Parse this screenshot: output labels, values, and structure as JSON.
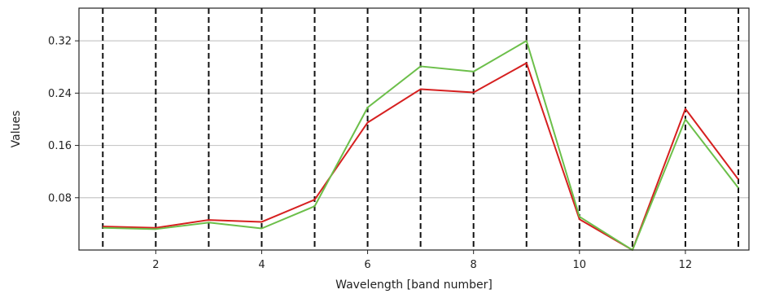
{
  "chart_data": {
    "type": "line",
    "xlabel": "Wavelength [band number]",
    "ylabel": "Values",
    "xlim": [
      0.55,
      13.2
    ],
    "ylim": [
      0.0,
      0.37
    ],
    "xticks": [
      2,
      4,
      6,
      8,
      10,
      12
    ],
    "xtick_labels": [
      "2",
      "4",
      "6",
      "8",
      "10",
      "12"
    ],
    "yticks": [
      0.08,
      0.16,
      0.24,
      0.32
    ],
    "ytick_labels": [
      "0.08",
      "0.16",
      "0.24",
      "0.32"
    ],
    "grid": "horizontal",
    "vertical_markers": [
      1,
      2,
      3,
      4,
      5,
      6,
      7,
      8,
      9,
      10,
      11,
      12,
      13
    ],
    "vertical_marker_style": "dashed",
    "x": [
      1,
      2,
      3,
      4,
      5,
      6,
      7,
      8,
      9,
      10,
      11,
      12,
      13
    ],
    "series": [
      {
        "color": "#d62020",
        "values": [
          0.036,
          0.034,
          0.046,
          0.043,
          0.077,
          0.195,
          0.246,
          0.241,
          0.286,
          0.047,
          0.0,
          0.216,
          0.108
        ]
      },
      {
        "color": "#6cbf4a",
        "values": [
          0.034,
          0.032,
          0.042,
          0.033,
          0.067,
          0.218,
          0.281,
          0.273,
          0.32,
          0.051,
          0.0,
          0.2,
          0.095
        ]
      }
    ]
  }
}
